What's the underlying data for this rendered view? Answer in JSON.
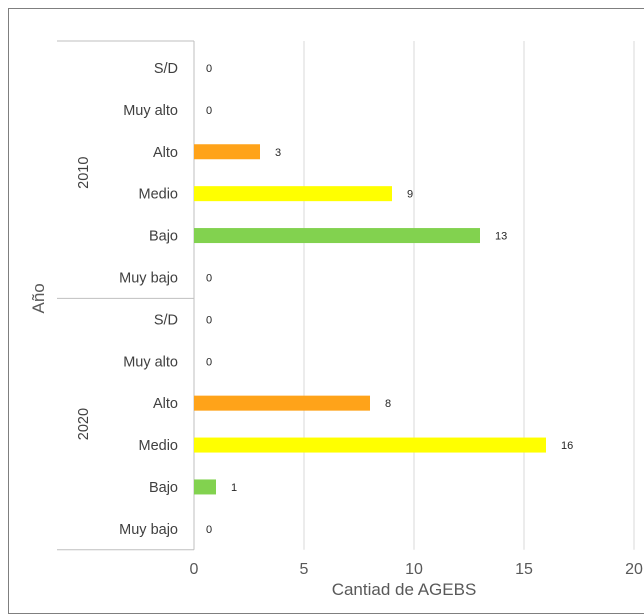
{
  "chart_data": {
    "type": "bar",
    "orientation": "horizontal",
    "title": "",
    "xlabel": "Cantiad de AGEBS",
    "ylabel": "Año",
    "xlim": [
      0,
      20
    ],
    "x_ticks": [
      "0",
      "5",
      "10",
      "15",
      "20"
    ],
    "grid": true,
    "legend": "none",
    "groups": [
      {
        "name": "2010",
        "categories": [
          "S/D",
          "Muy alto",
          "Alto",
          "Medio",
          "Bajo",
          "Muy bajo"
        ],
        "values": [
          0,
          0,
          3,
          9,
          13,
          0
        ]
      },
      {
        "name": "2020",
        "categories": [
          "S/D",
          "Muy alto",
          "Alto",
          "Medio",
          "Bajo",
          "Muy bajo"
        ],
        "values": [
          0,
          0,
          8,
          16,
          1,
          0
        ]
      }
    ],
    "colors": {
      "S/D": "#bfbfbf",
      "Muy alto": "#e31a1c",
      "Alto": "#ffa319",
      "Medio": "#ffff00",
      "Bajo": "#82d24f",
      "Muy bajo": "#2e9e3f"
    },
    "grid_color": "#d9d9d9",
    "axis_color": "#bfbfbf"
  }
}
